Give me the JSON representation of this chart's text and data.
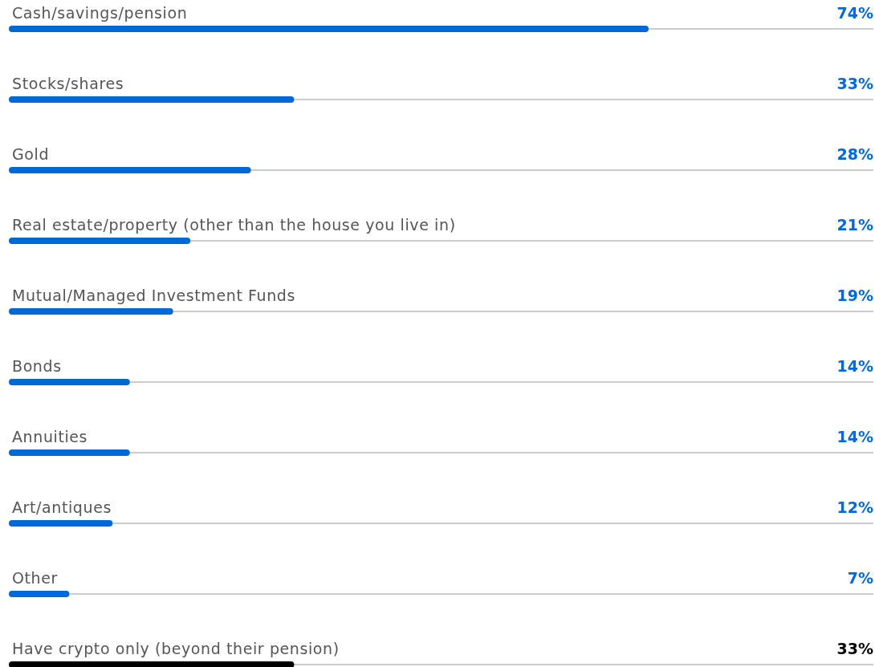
{
  "chart_data": {
    "type": "bar",
    "orientation": "horizontal",
    "categories": [
      "Cash/savings/pension",
      "Stocks/shares",
      "Gold",
      "Real estate/property (other than the house you live in)",
      "Mutual/Managed Investment Funds",
      "Bonds",
      "Annuities",
      "Art/antiques",
      "Other",
      "Have crypto only (beyond their pension)"
    ],
    "values": [
      74,
      33,
      28,
      21,
      19,
      14,
      14,
      12,
      7,
      33
    ],
    "value_labels": [
      "74%",
      "33%",
      "28%",
      "21%",
      "19%",
      "14%",
      "14%",
      "12%",
      "7%",
      "33%"
    ],
    "colors": [
      "#0068d9",
      "#0068d9",
      "#0068d9",
      "#0068d9",
      "#0068d9",
      "#0068d9",
      "#0068d9",
      "#0068d9",
      "#0068d9",
      "#000000"
    ],
    "xlim": [
      0,
      100
    ]
  }
}
